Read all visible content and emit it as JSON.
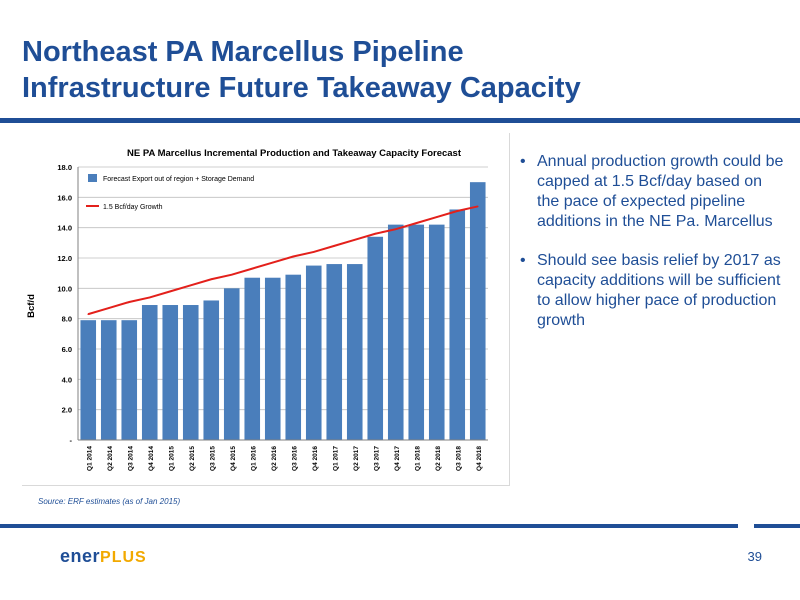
{
  "slide": {
    "title_line1": "Northeast PA Marcellus Pipeline",
    "title_line2": "Infrastructure Future Takeaway Capacity",
    "bullets": [
      "Annual production growth could be capped at 1.5 Bcf/day based on the pace of expected pipeline additions in the NE Pa. Marcellus",
      "Should see basis relief by 2017 as capacity additions will be sufficient to allow higher pace of production growth"
    ],
    "source": "Source: ERF estimates (as of Jan 2015)",
    "logo_main": "ener",
    "logo_plus": "PLUS",
    "page_number": "39"
  },
  "colors": {
    "brand_blue": "#1f4e96",
    "bar_blue": "#4a7ebb",
    "growth_red": "#e3201b",
    "logo_gold": "#f2a900"
  },
  "chart_data": {
    "type": "bar",
    "title": "NE PA Marcellus Incremental Production and Takeaway Capacity Forecast",
    "ylabel": "Bcf/d",
    "xlabel": "",
    "ylim": [
      0,
      18
    ],
    "y_ticks": [
      0,
      2,
      4,
      6,
      8,
      10,
      12,
      14,
      16,
      18
    ],
    "y_tick_labels": [
      "-",
      "2.0",
      "4.0",
      "6.0",
      "8.0",
      "10.0",
      "12.0",
      "14.0",
      "16.0",
      "18.0"
    ],
    "grid": true,
    "legend_position": "top-left",
    "categories": [
      "Q1 2014",
      "Q2 2014",
      "Q3 2014",
      "Q4 2014",
      "Q1 2015",
      "Q2 2015",
      "Q3 2015",
      "Q4 2015",
      "Q1 2016",
      "Q2 2016",
      "Q3 2016",
      "Q4 2016",
      "Q1 2017",
      "Q2 2017",
      "Q3 2017",
      "Q4 2017",
      "Q1 2018",
      "Q2 2018",
      "Q3 2018",
      "Q4 2018"
    ],
    "series": [
      {
        "name": "Forecast Export out of region + Storage Demand",
        "type": "bar",
        "color": "#4a7ebb",
        "values": [
          7.9,
          7.9,
          7.9,
          8.9,
          8.9,
          8.9,
          9.2,
          10.0,
          10.7,
          10.7,
          10.9,
          11.5,
          11.6,
          11.6,
          13.4,
          14.2,
          14.2,
          14.2,
          15.2,
          17.0
        ]
      },
      {
        "name": "1.5 Bcf/day Growth",
        "type": "line",
        "color": "#e3201b",
        "values": [
          8.3,
          8.7,
          9.1,
          9.4,
          9.8,
          10.2,
          10.6,
          10.9,
          11.3,
          11.7,
          12.1,
          12.4,
          12.8,
          13.2,
          13.6,
          13.9,
          14.3,
          14.7,
          15.1,
          15.4
        ]
      }
    ]
  }
}
